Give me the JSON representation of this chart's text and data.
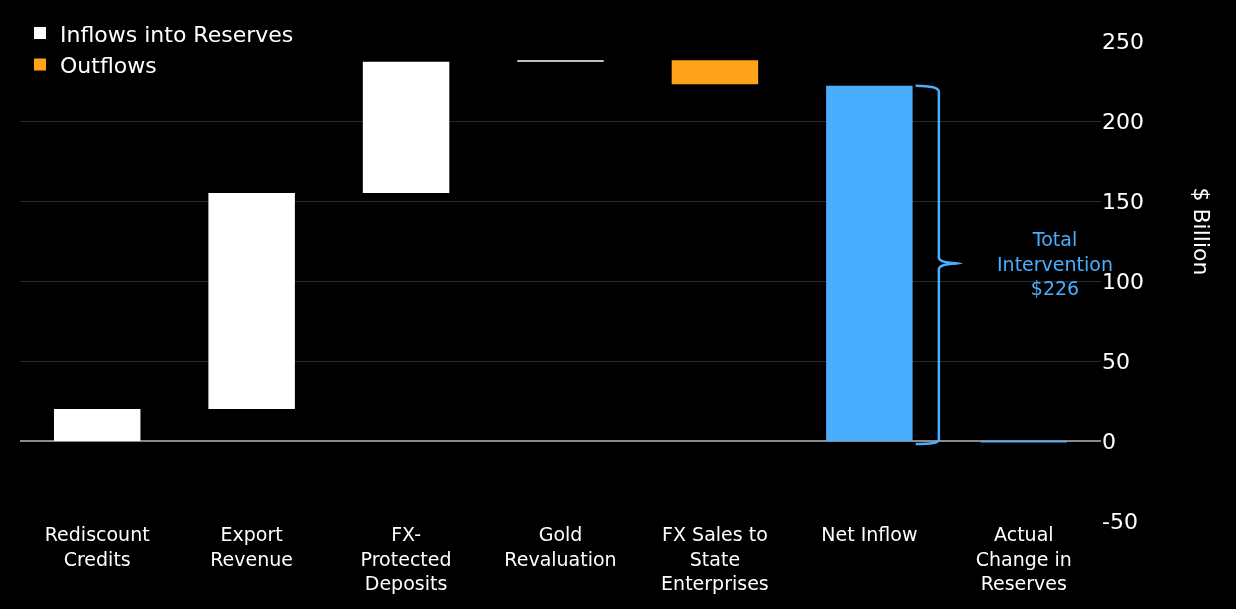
{
  "chart_data": {
    "type": "bar",
    "categories": [
      "Rediscount Credits",
      "Export Revenue",
      "FX-Protected Deposits",
      "Gold Revaluation",
      "FX Sales to State Enterprises",
      "Net Inflow",
      "Actual Change in Reserves"
    ],
    "series": [
      {
        "name": "Inflows into Reserves",
        "color": "#ffffff",
        "values": [
          20,
          135,
          82,
          1,
          null,
          null,
          null
        ],
        "base": [
          0,
          20,
          155,
          237,
          null,
          null,
          null
        ]
      },
      {
        "name": "Outflows",
        "color": "#ffa31a",
        "values": [
          null,
          null,
          null,
          null,
          -15,
          null,
          null
        ],
        "base": [
          null,
          null,
          null,
          null,
          238,
          null,
          null
        ]
      },
      {
        "color": "#4aaeff",
        "values": [
          null,
          null,
          null,
          null,
          null,
          222,
          -1
        ],
        "base": [
          null,
          null,
          null,
          null,
          null,
          0,
          0
        ]
      }
    ],
    "ylabel": "$ Billion",
    "ylim": [
      -50,
      250
    ],
    "yticks": [
      -50,
      0,
      50,
      100,
      150,
      200,
      250
    ],
    "annotations": [
      "Total Intervention $226"
    ],
    "grid": "y",
    "legend": "top left"
  }
}
